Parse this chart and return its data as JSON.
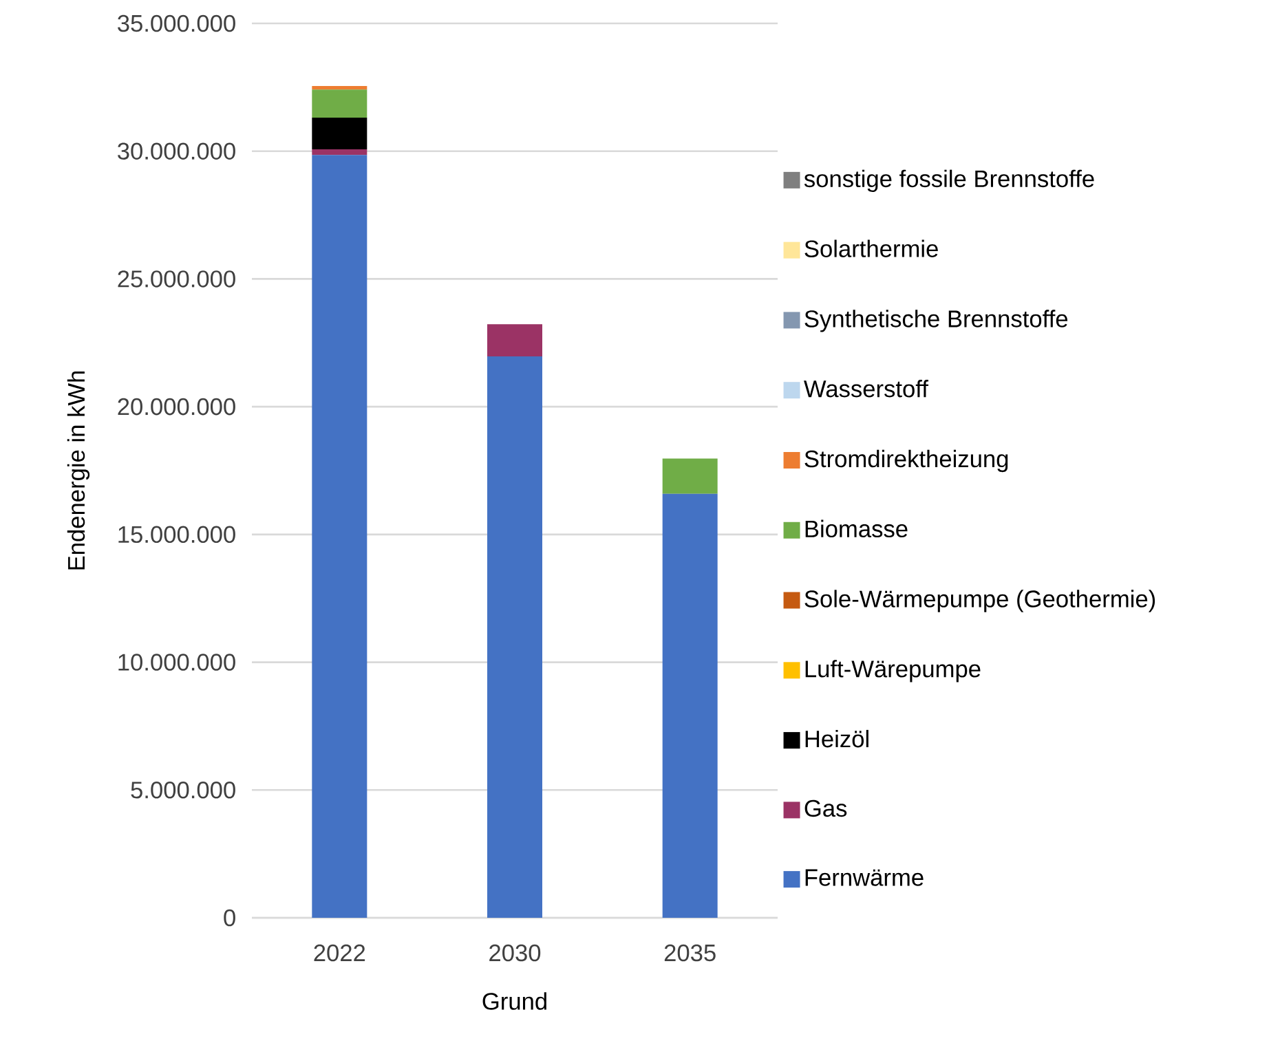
{
  "chart_data": {
    "type": "bar",
    "stacked": true,
    "xlabel": "Grund",
    "ylabel": "Endenergie in kWh",
    "categories": [
      "2022",
      "2030",
      "2035"
    ],
    "series": [
      {
        "name": "Fernwärme",
        "color": "#4472c4",
        "values": [
          29850000,
          21970000,
          16590000
        ]
      },
      {
        "name": "Gas",
        "color": "#9b3365",
        "values": [
          220000,
          1260000,
          0
        ]
      },
      {
        "name": "Heizöl",
        "color": "#000000",
        "values": [
          1240000,
          0,
          0
        ]
      },
      {
        "name": "Luft-Wärepumpe",
        "color": "#ffc000",
        "values": [
          0,
          0,
          0
        ]
      },
      {
        "name": "Sole-Wärmepumpe (Geothermie)",
        "color": "#c55a11",
        "values": [
          0,
          0,
          0
        ]
      },
      {
        "name": "Biomasse",
        "color": "#70ad47",
        "values": [
          1100000,
          0,
          1380000
        ]
      },
      {
        "name": "Stromdirektheizung",
        "color": "#ed7d31",
        "values": [
          140000,
          0,
          0
        ]
      },
      {
        "name": "Wasserstoff",
        "color": "#bdd7ee",
        "values": [
          0,
          0,
          0
        ]
      },
      {
        "name": "Synthetische Brennstoffe",
        "color": "#8497b0",
        "values": [
          0,
          0,
          0
        ]
      },
      {
        "name": "Solarthermie",
        "color": "#ffe699",
        "values": [
          0,
          0,
          0
        ]
      },
      {
        "name": "sonstige fossile Brennstoffe",
        "color": "#7f7f7f",
        "values": [
          0,
          0,
          0
        ]
      }
    ],
    "ylim": [
      0,
      35000000
    ],
    "yticks": [
      0,
      {
        "value": 5000000,
        "label": "5.000.000"
      },
      {
        "value": 10000000,
        "label": "10.000.000"
      },
      {
        "value": 15000000,
        "label": "15.000.000"
      },
      {
        "value": 20000000,
        "label": "20.000.000"
      },
      {
        "value": 25000000,
        "label": "25.000.000"
      },
      {
        "value": 30000000,
        "label": "30.000.000"
      },
      {
        "value": 35000000,
        "label": "35.000.000"
      }
    ],
    "grid": "y",
    "legend": "right"
  }
}
